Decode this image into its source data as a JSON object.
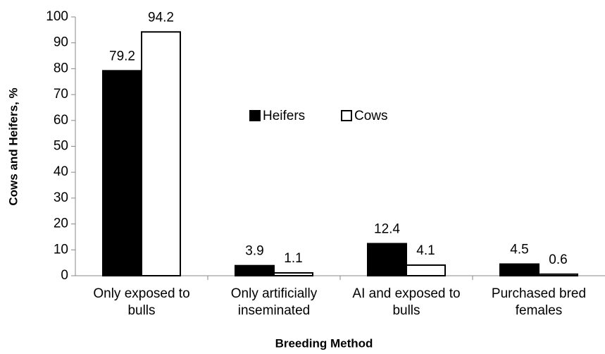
{
  "chart_data": {
    "type": "bar",
    "categories": [
      "Only exposed to bulls",
      "Only artificially inseminated",
      "AI and exposed to bulls",
      "Purchased bred females"
    ],
    "series": [
      {
        "name": "Heifers",
        "color": "#000000",
        "values": [
          79.2,
          3.9,
          12.4,
          4.5
        ]
      },
      {
        "name": "Cows",
        "color": "#ffffff",
        "values": [
          94.2,
          1.1,
          4.1,
          0.6
        ]
      }
    ],
    "x_label": "Breeding Method",
    "y_label": "Cows and Heifers, %",
    "ylim": [
      0,
      100
    ],
    "yticks": [
      0,
      10,
      20,
      30,
      40,
      50,
      60,
      70,
      80,
      90,
      100
    ],
    "grid": false
  }
}
